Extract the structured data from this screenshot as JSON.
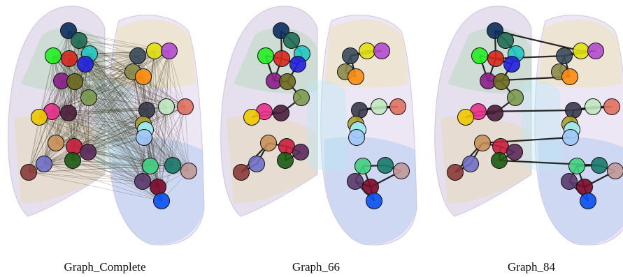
{
  "figure": {
    "panels": [
      {
        "label": "Graph_Complete"
      },
      {
        "label": "Graph_66"
      },
      {
        "label": "Graph_84"
      }
    ]
  }
}
